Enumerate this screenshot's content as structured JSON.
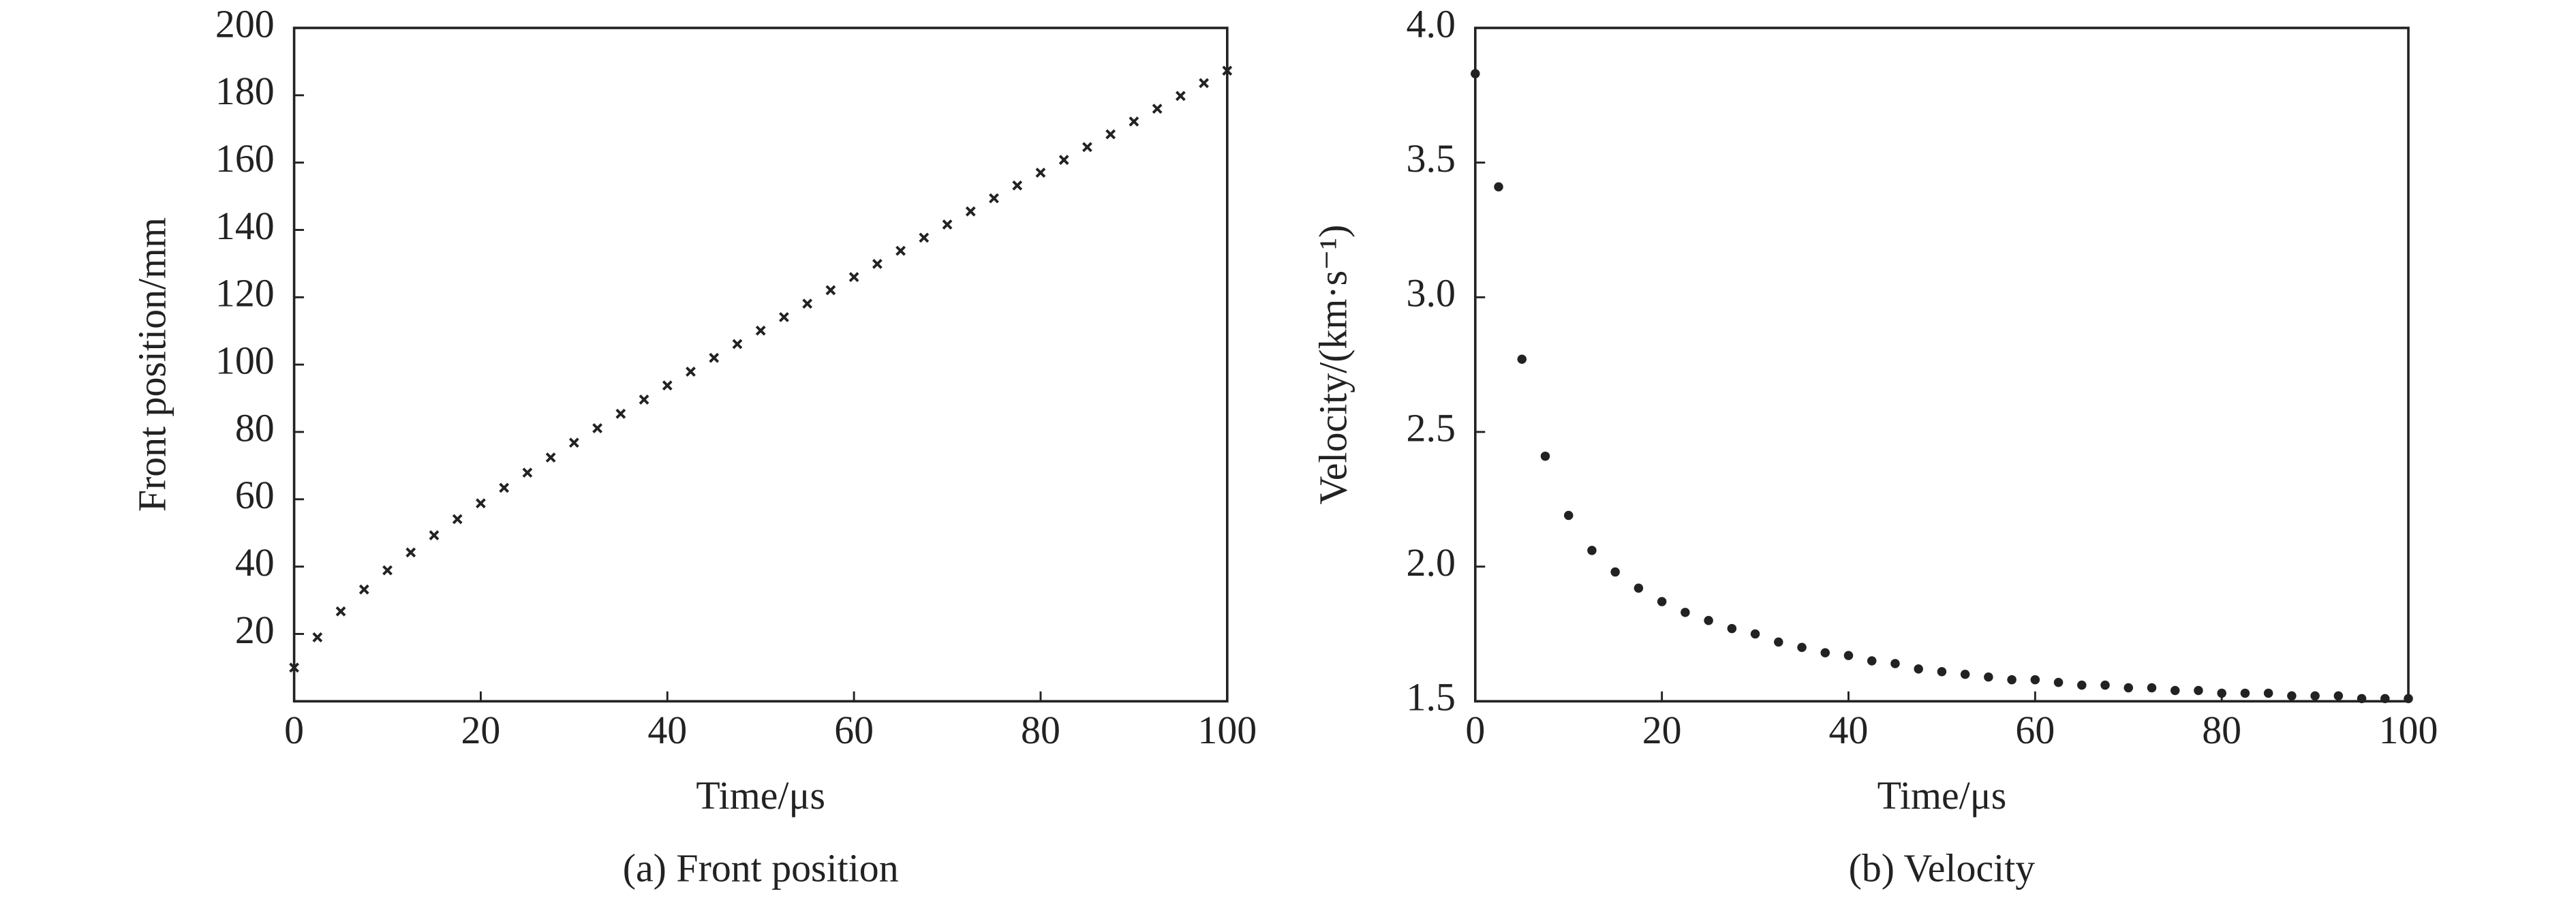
{
  "chart_data": [
    {
      "type": "scatter",
      "marker": "cross",
      "color": "#222222",
      "caption": "(a) Front position",
      "x_label": "Time/μs",
      "y_label": "Front position/mm",
      "x": [
        0,
        2.5,
        5,
        7.5,
        10,
        12.5,
        15,
        17.5,
        20,
        22.5,
        25,
        27.5,
        30,
        32.5,
        35,
        37.5,
        40,
        42.5,
        45,
        47.5,
        50,
        52.5,
        55,
        57.5,
        60,
        62.5,
        65,
        67.5,
        70,
        72.5,
        75,
        77.5,
        80,
        82.5,
        85,
        87.5,
        90,
        92.5,
        95,
        97.5,
        100
      ],
      "values": [
        10,
        19.0,
        26.7,
        33.2,
        38.9,
        44.2,
        49.3,
        54.1,
        58.8,
        63.4,
        67.9,
        72.4,
        76.8,
        81.1,
        85.4,
        89.6,
        93.8,
        97.9,
        102.0,
        106.1,
        110.1,
        114.1,
        118.1,
        122.1,
        126.0,
        129.9,
        133.8,
        137.7,
        141.6,
        145.5,
        149.4,
        153.2,
        157.0,
        160.8,
        164.6,
        168.4,
        172.2,
        176.0,
        179.8,
        183.6,
        187.3
      ],
      "xlim": [
        0,
        100
      ],
      "xticks": [
        0,
        20,
        40,
        60,
        80,
        100
      ],
      "ylim": [
        0,
        200
      ],
      "yticks": [
        20,
        40,
        60,
        80,
        100,
        120,
        140,
        160,
        180,
        200
      ]
    },
    {
      "type": "scatter",
      "marker": "dot",
      "color": "#222222",
      "caption": "(b) Velocity",
      "x_label": "Time/μs",
      "y_label": "Velocity/(km·s⁻¹)",
      "x": [
        0,
        2.5,
        5,
        7.5,
        10,
        12.5,
        15,
        17.5,
        20,
        22.5,
        25,
        27.5,
        30,
        32.5,
        35,
        37.5,
        40,
        42.5,
        45,
        47.5,
        50,
        52.5,
        55,
        57.5,
        60,
        62.5,
        65,
        67.5,
        70,
        72.5,
        75,
        77.5,
        80,
        82.5,
        85,
        87.5,
        90,
        92.5,
        95,
        97.5,
        100
      ],
      "values": [
        3.83,
        3.41,
        2.77,
        2.41,
        2.19,
        2.06,
        1.98,
        1.92,
        1.87,
        1.83,
        1.8,
        1.77,
        1.75,
        1.72,
        1.7,
        1.68,
        1.67,
        1.65,
        1.64,
        1.62,
        1.61,
        1.6,
        1.59,
        1.58,
        1.58,
        1.57,
        1.56,
        1.56,
        1.55,
        1.55,
        1.54,
        1.54,
        1.53,
        1.53,
        1.53,
        1.52,
        1.52,
        1.52,
        1.51,
        1.51,
        1.51
      ],
      "xlim": [
        0,
        100
      ],
      "xticks": [
        0,
        20,
        40,
        60,
        80,
        100
      ],
      "ylim": [
        1.5,
        4.0
      ],
      "yticks": [
        1.5,
        {
          "value": 2.0,
          "label": "2.0"
        },
        2.5,
        {
          "value": 3.0,
          "label": "3.0"
        },
        3.5,
        {
          "value": 4.0,
          "label": "4.0"
        }
      ]
    }
  ]
}
